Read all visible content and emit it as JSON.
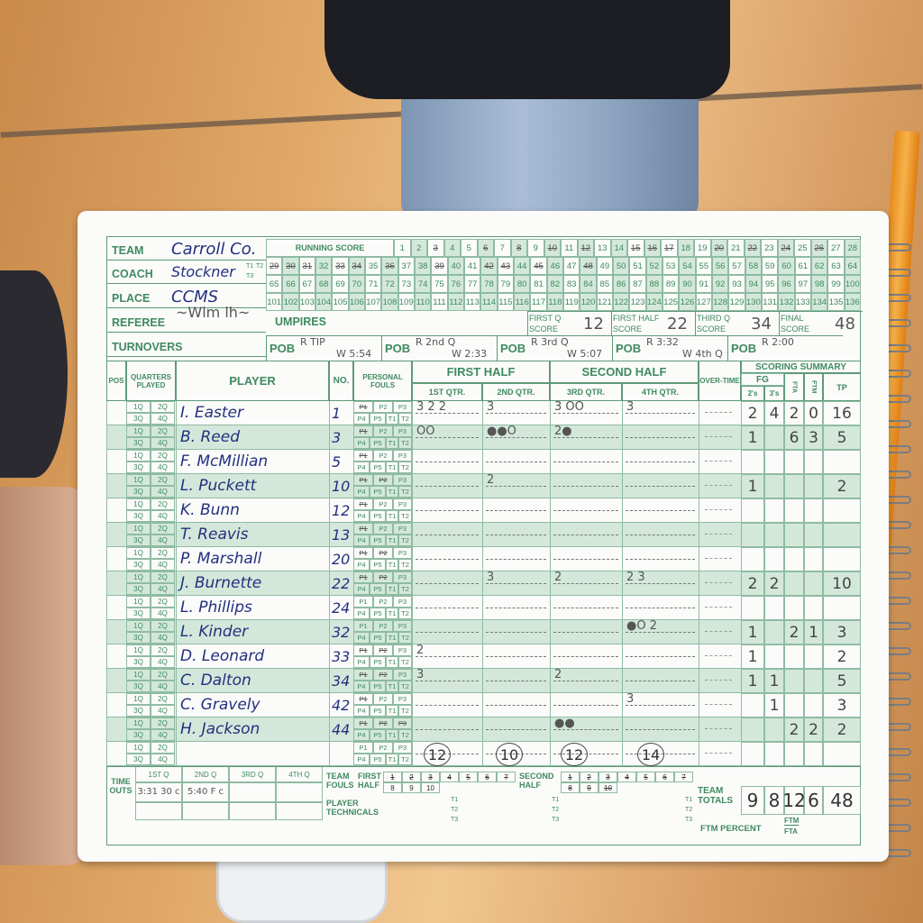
{
  "header": {
    "team_label": "TEAM",
    "team": "Carroll Co.",
    "coach_label": "COACH",
    "coach": "Stockner",
    "place_label": "PLACE",
    "place": "CCMS",
    "referee_label": "REFEREE",
    "turnovers_label": "TURNOVERS",
    "coach_tech": [
      "T1",
      "T2",
      "T3"
    ]
  },
  "running_score": {
    "label": "RUNNING SCORE",
    "max": 136,
    "crossed": [
      3,
      6,
      8,
      10,
      12,
      15,
      16,
      17,
      20,
      22,
      24,
      26,
      29,
      30,
      31,
      33,
      34,
      36,
      39,
      42,
      43,
      45,
      48
    ]
  },
  "umpires_label": "UMPIRES",
  "scores": [
    {
      "label1": "FIRST Q",
      "label2": "SCORE",
      "value": "12"
    },
    {
      "label1": "FIRST HALF",
      "label2": "SCORE",
      "value": "22"
    },
    {
      "label1": "THIRD Q",
      "label2": "SCORE",
      "value": "34"
    },
    {
      "label1": "FINAL",
      "label2": "SCORE",
      "value": "48"
    }
  ],
  "pob": [
    {
      "label": "POB",
      "r": "R TIP",
      "w": "W 5:54"
    },
    {
      "label": "POB",
      "r": "R 2nd Q",
      "w": "W 2:33"
    },
    {
      "label": "POB",
      "r": "R 3rd Q",
      "w": "W 5:07"
    },
    {
      "label": "POB",
      "r": "R 3:32",
      "w": "W 4th Q"
    },
    {
      "label": "POB",
      "r": "R 2:00",
      "w": ""
    }
  ],
  "columns": {
    "pos": "POS",
    "quarters": "QUARTERS PLAYED",
    "player": "PLAYER",
    "no": "NO.",
    "fouls": "PERSONAL FOULS",
    "first_half": "FIRST HALF",
    "second_half": "SECOND HALF",
    "q1": "1ST QTR.",
    "q2": "2ND QTR.",
    "q3": "3RD QTR.",
    "q4": "4TH QTR.",
    "overtime": "OVER-TIME",
    "summary": "SCORING SUMMARY",
    "fg": "FG",
    "twos": "2's",
    "threes": "3's",
    "fta": "FTA",
    "ftm": "FTM",
    "tp": "TP"
  },
  "quarter_labels": [
    "1Q",
    "2Q",
    "3Q",
    "4Q"
  ],
  "foul_labels": [
    "P1",
    "P2",
    "P3",
    "P4",
    "P5",
    "T1",
    "T2"
  ],
  "players": [
    {
      "name": "I. Easter",
      "no": "1",
      "fouls": 1,
      "q": [
        "3 2 2",
        "3",
        "3 OO",
        "3"
      ],
      "twos": "2",
      "threes": "4",
      "fta": "2",
      "ftm": "0",
      "tp": "16"
    },
    {
      "name": "B. Reed",
      "no": "3",
      "fouls": 1,
      "q": [
        "OO",
        "●●O",
        "2●",
        ""
      ],
      "twos": "1",
      "threes": "",
      "fta": "6",
      "ftm": "3",
      "tp": "5"
    },
    {
      "name": "F. McMillian",
      "no": "5",
      "fouls": 1,
      "q": [
        "",
        "",
        "",
        ""
      ],
      "twos": "",
      "threes": "",
      "fta": "",
      "ftm": "",
      "tp": ""
    },
    {
      "name": "L. Puckett",
      "no": "10",
      "fouls": 2,
      "q": [
        "",
        "2",
        "",
        ""
      ],
      "twos": "1",
      "threes": "",
      "fta": "",
      "ftm": "",
      "tp": "2"
    },
    {
      "name": "K. Bunn",
      "no": "12",
      "fouls": 1,
      "q": [
        "",
        "",
        "",
        ""
      ],
      "twos": "",
      "threes": "",
      "fta": "",
      "ftm": "",
      "tp": ""
    },
    {
      "name": "T. Reavis",
      "no": "13",
      "fouls": 1,
      "q": [
        "",
        "",
        "",
        ""
      ],
      "twos": "",
      "threes": "",
      "fta": "",
      "ftm": "",
      "tp": ""
    },
    {
      "name": "P. Marshall",
      "no": "20",
      "fouls": 2,
      "q": [
        "",
        "",
        "",
        ""
      ],
      "twos": "",
      "threes": "",
      "fta": "",
      "ftm": "",
      "tp": ""
    },
    {
      "name": "J. Burnette",
      "no": "22",
      "fouls": 2,
      "q": [
        "",
        "3",
        "2",
        "2 3"
      ],
      "twos": "2",
      "threes": "2",
      "fta": "",
      "ftm": "",
      "tp": "10"
    },
    {
      "name": "L. Phillips",
      "no": "24",
      "fouls": 0,
      "q": [
        "",
        "",
        "",
        ""
      ],
      "twos": "",
      "threes": "",
      "fta": "",
      "ftm": "",
      "tp": ""
    },
    {
      "name": "L. Kinder",
      "no": "32",
      "fouls": 0,
      "q": [
        "",
        "",
        "",
        "●O 2"
      ],
      "twos": "1",
      "threes": "",
      "fta": "2",
      "ftm": "1",
      "tp": "3"
    },
    {
      "name": "D. Leonard",
      "no": "33",
      "fouls": 2,
      "q": [
        "2",
        "",
        "",
        ""
      ],
      "twos": "1",
      "threes": "",
      "fta": "",
      "ftm": "",
      "tp": "2"
    },
    {
      "name": "C. Dalton",
      "no": "34",
      "fouls": 2,
      "q": [
        "3",
        "",
        "2",
        ""
      ],
      "twos": "1",
      "threes": "1",
      "fta": "",
      "ftm": "",
      "tp": "5"
    },
    {
      "name": "C. Gravely",
      "no": "42",
      "fouls": 1,
      "q": [
        "",
        "",
        "",
        "3"
      ],
      "twos": "",
      "threes": "1",
      "fta": "",
      "ftm": "",
      "tp": "3"
    },
    {
      "name": "H. Jackson",
      "no": "44",
      "fouls": 3,
      "q": [
        "",
        "",
        "●●",
        ""
      ],
      "twos": "",
      "threes": "",
      "fta": "2",
      "ftm": "2",
      "tp": "2"
    },
    {
      "name": "",
      "no": "",
      "fouls": 0,
      "q": [
        "",
        "",
        "",
        ""
      ],
      "twos": "",
      "threes": "",
      "fta": "",
      "ftm": "",
      "tp": ""
    }
  ],
  "quarter_totals": [
    "12",
    "10",
    "12",
    "14"
  ],
  "timeouts": {
    "label": "TIME OUTS",
    "quarters": [
      "1ST Q",
      "2ND Q",
      "3RD Q",
      "4TH Q"
    ],
    "values": [
      "3:31 30 c",
      "5:40 F c",
      "",
      ""
    ]
  },
  "team_fouls": {
    "label": "TEAM FOULS",
    "first_label": "FIRST HALF",
    "second_label": "SECOND HALF",
    "first_crossed": 7,
    "second_crossed": 10
  },
  "technicals": {
    "label": "PLAYER TECHNICALS",
    "slots": [
      "T1",
      "T2",
      "T3"
    ]
  },
  "totals": {
    "label": "TEAM TOTALS",
    "twos": "9",
    "threes": "8",
    "fta": "12",
    "ftm": "6",
    "tp": "48"
  },
  "ftm_percent": {
    "label": "FTM PERCENT",
    "num": "FTM",
    "den": "FTA"
  },
  "colors": {
    "form_green": "#3f8a60",
    "row_tint": "#d3e8da",
    "ink": "#23307e"
  }
}
